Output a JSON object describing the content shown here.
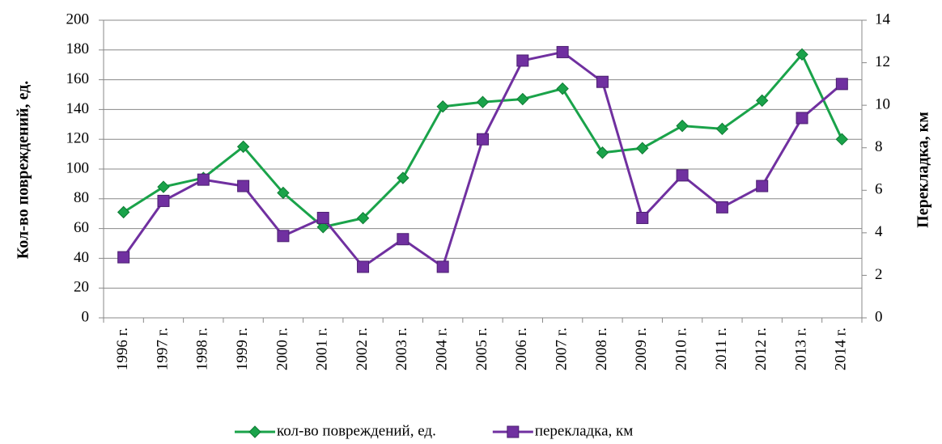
{
  "chart_data": {
    "type": "line",
    "y_label": "Кол-во повреждений, ед.",
    "y2_label": "Перекладка, км",
    "categories": [
      "1996 г.",
      "1997 г.",
      "1998 г.",
      "1999 г.",
      "2000 г.",
      "2001 г.",
      "2002 г.",
      "2003 г.",
      "2004 г.",
      "2005 г.",
      "2006 г.",
      "2007 г.",
      "2008 г.",
      "2009 г.",
      "2010 г.",
      "2011 г.",
      "2012 г.",
      "2013 г.",
      "2014 г."
    ],
    "series": [
      {
        "name": "кол-во повреждений, ед.",
        "color": "#1aa34a",
        "marker": "diamond",
        "values": [
          71,
          88,
          94,
          115,
          84,
          61,
          67,
          94,
          142,
          145,
          147,
          154,
          111,
          114,
          129,
          127,
          146,
          177,
          120
        ]
      },
      {
        "name": "перекладка, км",
        "color": "#7030a0",
        "marker": "square",
        "axis": "y2",
        "values": [
          2.85,
          5.5,
          6.5,
          6.2,
          3.85,
          4.7,
          2.4,
          3.7,
          2.4,
          8.4,
          12.1,
          12.5,
          11.1,
          4.7,
          6.7,
          5.2,
          6.2,
          9.4,
          11.0
        ]
      }
    ],
    "ylim": [
      0,
      200
    ],
    "yticks": [
      0,
      20,
      40,
      60,
      80,
      100,
      120,
      140,
      160,
      180,
      200
    ],
    "y2lim": [
      0,
      14
    ],
    "y2ticks": [
      0,
      2,
      4,
      6,
      8,
      10,
      12,
      14
    ],
    "grid": true,
    "legend": "bottom"
  }
}
